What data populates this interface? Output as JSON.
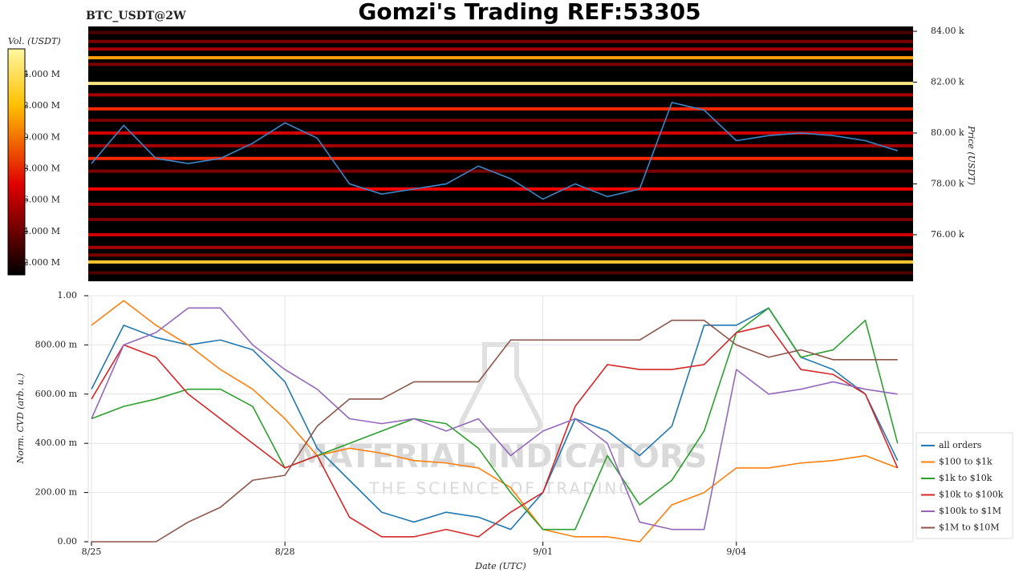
{
  "title": "Gomzi's Trading REF:53305",
  "watermark": "MATERIAL INDICATORS",
  "watermark_tagline": "THE SCIENCE OF TRADING",
  "chart_data": [
    {
      "type": "heatmap",
      "title": "BTC_USDT@2W",
      "y_label": "Price (USDT)",
      "x": [
        0,
        0.5,
        1,
        1.5,
        2,
        2.5,
        3,
        3.5,
        4,
        4.5,
        5,
        5.5,
        6,
        6.5,
        7,
        7.5,
        8,
        8.5,
        9,
        9.5,
        10,
        10.5,
        11,
        11.5,
        12,
        12.5
      ],
      "xlim": [
        -0.05,
        12.74
      ],
      "ylim": [
        74.17,
        84.19
      ],
      "yticks": [
        {
          "value": 76,
          "label": "76.00 k"
        },
        {
          "value": 78,
          "label": "78.00 k"
        },
        {
          "value": 80,
          "label": "80.00 k"
        },
        {
          "value": 82,
          "label": "82.00 k"
        },
        {
          "value": 84,
          "label": "84.00 k"
        }
      ],
      "line": {
        "color": "#3a86c8",
        "values": [
          78.8,
          80.3,
          79.0,
          78.8,
          79.0,
          79.6,
          80.4,
          79.8,
          78.0,
          77.6,
          77.8,
          78.0,
          78.7,
          78.2,
          77.4,
          78.0,
          77.5,
          77.8,
          81.2,
          80.9,
          79.7,
          79.9,
          80.0,
          79.9,
          79.7,
          79.3
        ]
      },
      "levels": {
        "prices": [
          83.95,
          83.6,
          83.3,
          82.96,
          82.7,
          81.95,
          81.5,
          80.95,
          80.5,
          80.0,
          79.5,
          79.0,
          78.5,
          77.8,
          77.2,
          76.6,
          76.0,
          75.5,
          75.2,
          74.93,
          74.5
        ],
        "volumes": [
          3,
          4,
          5,
          11,
          4,
          14,
          5,
          8,
          4,
          6,
          5,
          8,
          4,
          7,
          5,
          4,
          6,
          5,
          4,
          12,
          3
        ]
      },
      "colorbar": {
        "label": "Vol. (USDT)",
        "lim": [
          1.23,
          15.64
        ],
        "ticks": [
          {
            "value": 2,
            "label": "2.000 M"
          },
          {
            "value": 4,
            "label": "4.000 M"
          },
          {
            "value": 6,
            "label": "6.000 M"
          },
          {
            "value": 8,
            "label": "8.000 M"
          },
          {
            "value": 10,
            "label": "10.000 M"
          },
          {
            "value": 12,
            "label": "12.000 M"
          },
          {
            "value": 14,
            "label": "14.000 M"
          }
        ]
      }
    },
    {
      "type": "line",
      "x_label": "Date (UTC)",
      "y_label": "Norm. CVD (arb. u.)",
      "grid": true,
      "legend": "right",
      "x": [
        0,
        0.5,
        1,
        1.5,
        2,
        2.5,
        3,
        3.5,
        4,
        4.5,
        5,
        5.5,
        6,
        6.5,
        7,
        7.5,
        8,
        8.5,
        9,
        9.5,
        10,
        10.5,
        11,
        11.5,
        12,
        12.5
      ],
      "xlim": [
        -0.05,
        12.74
      ],
      "xticks": [
        {
          "value": 0,
          "label": "8/25"
        },
        {
          "value": 3,
          "label": "8/28"
        },
        {
          "value": 7,
          "label": "9/01"
        },
        {
          "value": 10,
          "label": "9/04"
        }
      ],
      "ylim": [
        0,
        1
      ],
      "yticks": [
        {
          "value": 0,
          "label": "0.00"
        },
        {
          "value": 0.2,
          "label": "200.00 m"
        },
        {
          "value": 0.4,
          "label": "400.00 m"
        },
        {
          "value": 0.6,
          "label": "600.00 m"
        },
        {
          "value": 0.8,
          "label": "800.00 m"
        },
        {
          "value": 1,
          "label": "1.00"
        }
      ],
      "series": [
        {
          "name": "all orders",
          "color": "#1f77b4",
          "values": [
            0.62,
            0.88,
            0.83,
            0.8,
            0.82,
            0.78,
            0.65,
            0.38,
            0.25,
            0.12,
            0.08,
            0.12,
            0.1,
            0.05,
            0.2,
            0.5,
            0.45,
            0.35,
            0.47,
            0.88,
            0.88,
            0.95,
            0.75,
            0.7,
            0.6,
            0.33
          ]
        },
        {
          "name": "$100 to $1k",
          "color": "#ff7f0e",
          "values": [
            0.88,
            0.98,
            0.88,
            0.8,
            0.7,
            0.62,
            0.5,
            0.35,
            0.38,
            0.36,
            0.33,
            0.32,
            0.3,
            0.22,
            0.05,
            0.02,
            0.02,
            0.0,
            0.15,
            0.2,
            0.3,
            0.3,
            0.32,
            0.33,
            0.35,
            0.3
          ]
        },
        {
          "name": "$1k to $10k",
          "color": "#2ca02c",
          "values": [
            0.5,
            0.55,
            0.58,
            0.62,
            0.62,
            0.55,
            0.3,
            0.35,
            0.4,
            0.45,
            0.5,
            0.48,
            0.38,
            0.2,
            0.05,
            0.05,
            0.35,
            0.15,
            0.25,
            0.45,
            0.85,
            0.95,
            0.75,
            0.78,
            0.9,
            0.4
          ]
        },
        {
          "name": "$10k to $100k",
          "color": "#d62728",
          "values": [
            0.58,
            0.8,
            0.75,
            0.6,
            0.5,
            0.4,
            0.3,
            0.35,
            0.1,
            0.02,
            0.02,
            0.05,
            0.02,
            0.12,
            0.2,
            0.55,
            0.72,
            0.7,
            0.7,
            0.72,
            0.85,
            0.88,
            0.7,
            0.68,
            0.6,
            0.3
          ]
        },
        {
          "name": "$100k to $1M",
          "color": "#9467bd",
          "values": [
            0.5,
            0.8,
            0.85,
            0.95,
            0.95,
            0.8,
            0.7,
            0.62,
            0.5,
            0.48,
            0.5,
            0.45,
            0.5,
            0.35,
            0.45,
            0.5,
            0.4,
            0.08,
            0.05,
            0.05,
            0.7,
            0.6,
            0.62,
            0.65,
            0.62,
            0.6
          ]
        },
        {
          "name": "$1M to $10M",
          "color": "#8c564b",
          "values": [
            0,
            0,
            0,
            0.08,
            0.14,
            0.25,
            0.27,
            0.47,
            0.58,
            0.58,
            0.65,
            0.65,
            0.65,
            0.82,
            0.82,
            0.82,
            0.82,
            0.82,
            0.9,
            0.9,
            0.8,
            0.75,
            0.78,
            0.74,
            0.74,
            0.74
          ]
        }
      ]
    }
  ]
}
